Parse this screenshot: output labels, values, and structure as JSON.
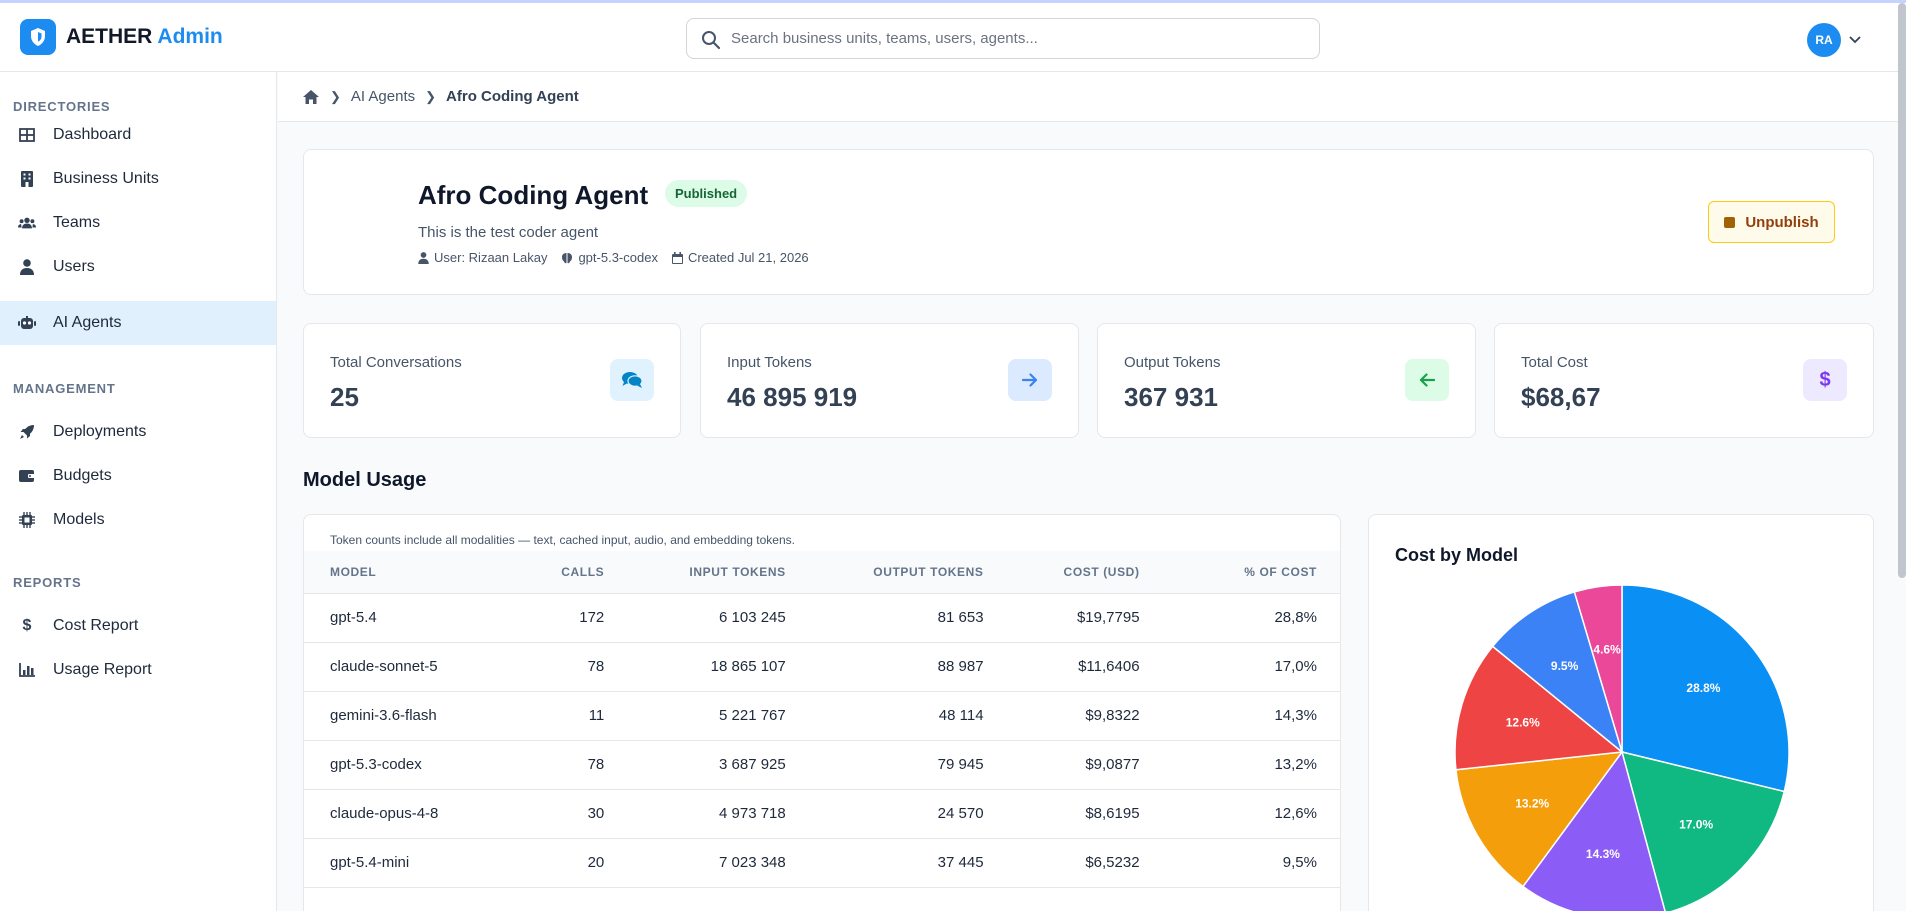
{
  "brand": {
    "name": "AETHER",
    "accent": "Admin",
    "color": "#1d8cf0"
  },
  "search": {
    "placeholder": "Search business units, teams, users, agents..."
  },
  "user": {
    "initials": "RA"
  },
  "sidebar": {
    "sections": [
      {
        "title": "DIRECTORIES",
        "items": [
          {
            "label": "Dashboard",
            "icon": "grid-icon"
          },
          {
            "label": "Business Units",
            "icon": "building-icon"
          },
          {
            "label": "Teams",
            "icon": "users-icon"
          },
          {
            "label": "Users",
            "icon": "user-icon"
          },
          {
            "label": "AI Agents",
            "icon": "robot-icon",
            "active": true
          }
        ]
      },
      {
        "title": "MANAGEMENT",
        "items": [
          {
            "label": "Deployments",
            "icon": "rocket-icon"
          },
          {
            "label": "Budgets",
            "icon": "wallet-icon"
          },
          {
            "label": "Models",
            "icon": "chip-icon"
          }
        ]
      },
      {
        "title": "REPORTS",
        "items": [
          {
            "label": "Cost Report",
            "icon": "dollar-icon"
          },
          {
            "label": "Usage Report",
            "icon": "bar-chart-icon"
          }
        ]
      }
    ]
  },
  "breadcrumb": {
    "items": [
      "AI Agents",
      "Afro Coding Agent"
    ]
  },
  "agent": {
    "name": "Afro Coding Agent",
    "status": "Published",
    "description": "This is the test coder agent",
    "user": "User: Rizaan Lakay",
    "model": "gpt-5.3-codex",
    "created": "Created Jul 21, 2026",
    "action_label": "Unpublish"
  },
  "stats": [
    {
      "label": "Total Conversations",
      "value": "25",
      "icon": "comments-icon",
      "bg": "#e0f2fe",
      "fg": "#0284c7"
    },
    {
      "label": "Input Tokens",
      "value": "46 895 919",
      "icon": "arrow-right-icon",
      "bg": "#dbeafe",
      "fg": "#3b82f6"
    },
    {
      "label": "Output Tokens",
      "value": "367 931",
      "icon": "arrow-left-icon",
      "bg": "#dcfce7",
      "fg": "#16a34a"
    },
    {
      "label": "Total Cost",
      "value": "$68,67",
      "icon": "dollar-icon",
      "bg": "#ede9fe",
      "fg": "#7c3aed"
    }
  ],
  "model_usage": {
    "title": "Model Usage",
    "note": "Token counts include all modalities — text, cached input, audio, and embedding tokens.",
    "columns": [
      "MODEL",
      "CALLS",
      "INPUT TOKENS",
      "OUTPUT TOKENS",
      "COST (USD)",
      "% OF COST"
    ],
    "rows": [
      [
        "gpt-5.4",
        "172",
        "6 103 245",
        "81 653",
        "$19,7795",
        "28,8%"
      ],
      [
        "claude-sonnet-5",
        "78",
        "18 865 107",
        "88 987",
        "$11,6406",
        "17,0%"
      ],
      [
        "gemini-3.6-flash",
        "11",
        "5 221 767",
        "48 114",
        "$9,8322",
        "14,3%"
      ],
      [
        "gpt-5.3-codex",
        "78",
        "3 687 925",
        "79 945",
        "$9,0877",
        "13,2%"
      ],
      [
        "claude-opus-4-8",
        "30",
        "4 973 718",
        "24 570",
        "$8,6195",
        "12,6%"
      ],
      [
        "gpt-5.4-mini",
        "20",
        "7 023 348",
        "37 445",
        "$6,5232",
        "9,5%"
      ]
    ]
  },
  "chart_data": {
    "type": "pie",
    "title": "Cost by Model",
    "values": [
      28.8,
      17.0,
      14.3,
      13.2,
      12.6,
      9.5,
      4.6
    ],
    "slice_labels": [
      "28.8%",
      "17.0%",
      "14.3%",
      "13.2%",
      "12.6%",
      "9.5%",
      "4.6%"
    ],
    "colors": [
      "#0a8ff5",
      "#10b981",
      "#8b5cf6",
      "#f59e0b",
      "#ef4444",
      "#3b82f6",
      "#ec4899"
    ]
  }
}
